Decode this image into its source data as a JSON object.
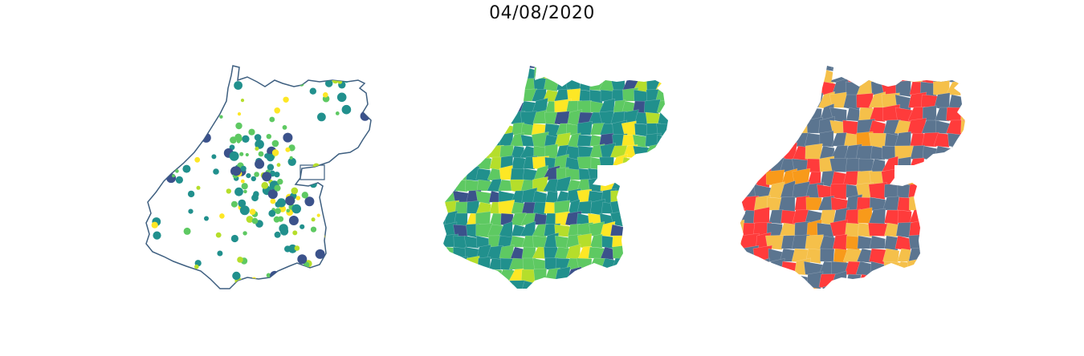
{
  "title": "04/08/2020",
  "colors": {
    "outline": "#3e5f80",
    "viridis": [
      "#440154",
      "#3b528b",
      "#21908d",
      "#5ec962",
      "#b5de2b",
      "#fde725"
    ],
    "risk": {
      "high": "#ff3b3b",
      "medium": "#f5c04a",
      "orange": "#f89a1a",
      "low": "#5b7590"
    }
  },
  "maps": [
    {
      "id": "points",
      "kind": "proportional-symbols"
    },
    {
      "id": "choropleth",
      "kind": "continuous-choropleth"
    },
    {
      "id": "risk",
      "kind": "categorical-choropleth"
    }
  ]
}
